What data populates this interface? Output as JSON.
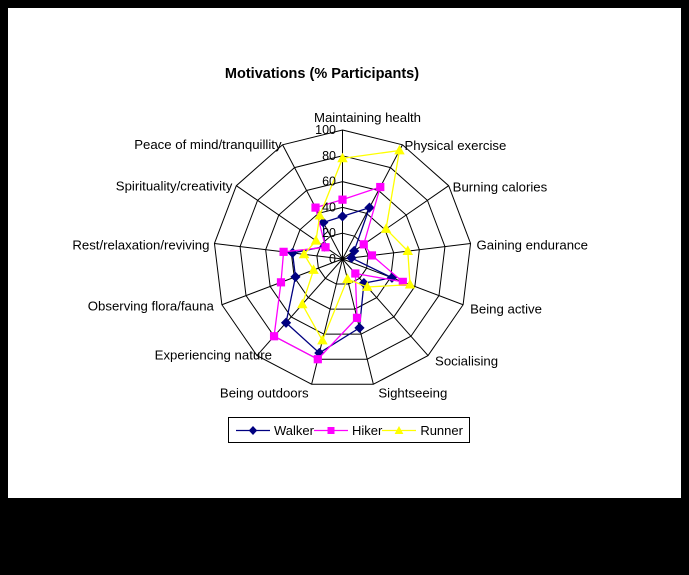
{
  "window": {
    "frame_color": "#000000",
    "canvas_color": "#FFFFFF"
  },
  "chart_data": {
    "type": "radar",
    "title": "Motivations (% Participants)",
    "categories": [
      "Maintaining health",
      "Physical exercise",
      "Burning calories",
      "Gaining endurance",
      "Being active",
      "Socialising",
      "Sightseeing",
      "Being outdoors",
      "Experiencing nature",
      "Observing flora/fauna",
      "Rest/relaxation/reviving",
      "Spirituality/creativity",
      "Peace of mind/tranquillity"
    ],
    "series": [
      {
        "name": "Walker",
        "color": "#000080",
        "marker": "diamond",
        "values": [
          33,
          45,
          11,
          7,
          41,
          25,
          55,
          75,
          66,
          39,
          39,
          17,
          32
        ]
      },
      {
        "name": "Hiker",
        "color": "#FF00FF",
        "marker": "square",
        "values": [
          46,
          63,
          20,
          23,
          50,
          15,
          47,
          80,
          80,
          51,
          46,
          16,
          45
        ]
      },
      {
        "name": "Runner",
        "color": "#FFFF00",
        "marker": "triangle",
        "values": [
          78,
          95,
          41,
          51,
          56,
          29,
          16,
          65,
          47,
          24,
          30,
          25,
          38
        ]
      }
    ],
    "axis": {
      "min": 0,
      "max": 100,
      "step": 20,
      "tick_labels": [
        "0",
        "20",
        "40",
        "60",
        "80",
        "100"
      ]
    },
    "grid": true,
    "grid_color": "#000000",
    "legend_position": "bottom"
  }
}
